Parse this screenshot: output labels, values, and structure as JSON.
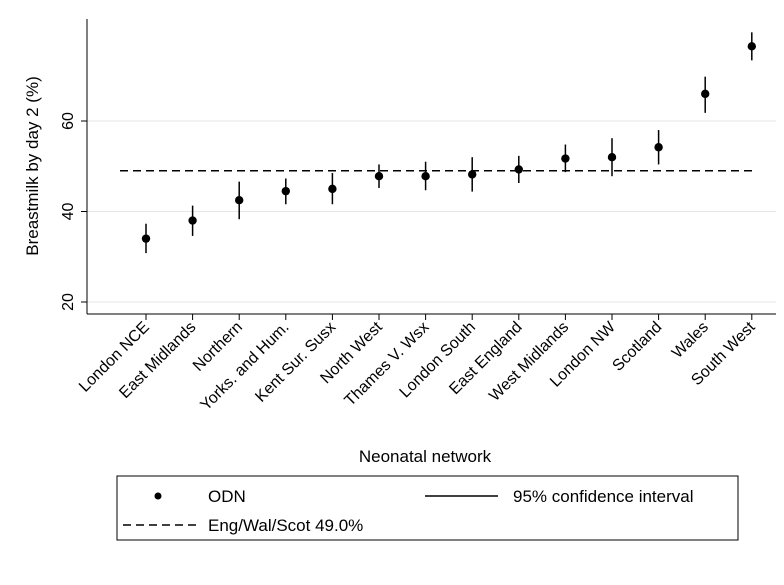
{
  "chart_data": {
    "type": "scatter",
    "xlabel": "Neonatal network",
    "ylabel": "Breastmilk by day 2 (%)",
    "categories": [
      "London NCE",
      "East Midlands",
      "Northern",
      "Yorks. and Hum.",
      "Kent Sur. Susx",
      "North West",
      "Thames V. Wsx",
      "London South",
      "East England",
      "West Midlands",
      "London NW",
      "Scotland",
      "Wales",
      "South West"
    ],
    "series": [
      {
        "name": "ODN",
        "values": [
          34.0,
          38.0,
          42.5,
          44.5,
          45.0,
          47.8,
          47.8,
          48.2,
          49.3,
          51.7,
          52.0,
          54.2,
          66.0,
          76.5
        ],
        "ci_low": [
          30.8,
          34.6,
          38.3,
          41.6,
          41.6,
          45.2,
          44.7,
          44.4,
          46.3,
          48.7,
          47.8,
          50.4,
          61.8,
          73.4
        ],
        "ci_high": [
          37.3,
          41.3,
          46.6,
          47.3,
          48.5,
          50.4,
          51.0,
          52.0,
          52.3,
          54.8,
          56.2,
          58.0,
          69.8,
          79.6
        ]
      }
    ],
    "reference_line": {
      "name": "Eng/Wal/Scot 49.0%",
      "value": 49.0,
      "style": "dashed"
    },
    "yticks": [
      20,
      40,
      60
    ],
    "ylim": [
      18,
      83
    ],
    "grid": true,
    "legend": {
      "position": "bottom",
      "entries": [
        {
          "label": "ODN",
          "marker": "dot"
        },
        {
          "label": "95% confidence interval",
          "marker": "solid-line"
        },
        {
          "label": "Eng/Wal/Scot 49.0%",
          "marker": "dashed-line"
        }
      ]
    }
  }
}
